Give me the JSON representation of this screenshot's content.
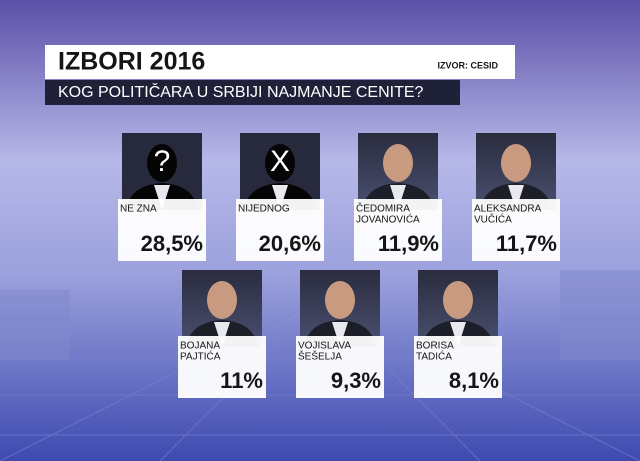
{
  "header": {
    "title": "IZBORI 2016",
    "source": "IZVOR: CESID",
    "subtitle": "KOG POLITIČARA U SRBIJI NAJMANJE CENITE?"
  },
  "items": [
    {
      "icon": "?",
      "name": [
        "NE ZNA"
      ],
      "value": "28,5%"
    },
    {
      "icon": "X",
      "name": [
        "NIJEDNOG"
      ],
      "value": "20,6%"
    },
    {
      "name": [
        "ČEDOMIRA",
        "JOVANOVIĆA"
      ],
      "value": "11,9%"
    },
    {
      "name": [
        "ALEKSANDRA",
        "VUČIĆA"
      ],
      "value": "11,7%"
    },
    {
      "name": [
        "BOJANA",
        "PAJTIĆA"
      ],
      "value": "11%"
    },
    {
      "name": [
        "VOJISLAVA",
        "ŠEŠELJA"
      ],
      "value": "9,3%"
    },
    {
      "name": [
        "BORISA",
        "TADIĆA"
      ],
      "value": "8,1%"
    }
  ]
}
